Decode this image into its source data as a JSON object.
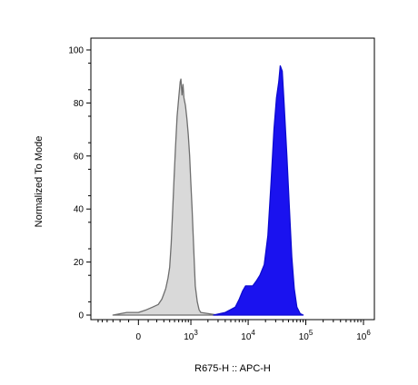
{
  "chart_data": {
    "type": "area",
    "xlabel": "R675-H :: APC-H",
    "ylabel": "Normalized To Mode",
    "x_scale": "biexponential",
    "ylim": [
      0,
      100
    ],
    "y_ticks": [
      "0",
      "20",
      "40",
      "60",
      "80",
      "100"
    ],
    "x_ticks": [
      {
        "value": 0,
        "base": "0",
        "exp": ""
      },
      {
        "value": 1000,
        "base": "10",
        "exp": "3"
      },
      {
        "value": 10000,
        "base": "10",
        "exp": "4"
      },
      {
        "value": 100000,
        "base": "10",
        "exp": "5"
      },
      {
        "value": 1000000,
        "base": "10",
        "exp": "6"
      }
    ],
    "grid": false,
    "series": [
      {
        "color": "#d9d9d9",
        "stroke": "#6e6e6e",
        "points": [
          [
            -300,
            0
          ],
          [
            -200,
            0.5
          ],
          [
            -120,
            1
          ],
          [
            -50,
            1
          ],
          [
            0,
            1
          ],
          [
            80,
            2
          ],
          [
            150,
            3
          ],
          [
            220,
            4
          ],
          [
            270,
            6
          ],
          [
            300,
            8
          ],
          [
            330,
            10
          ],
          [
            370,
            14
          ],
          [
            400,
            18
          ],
          [
            430,
            27
          ],
          [
            460,
            40
          ],
          [
            490,
            52
          ],
          [
            520,
            63
          ],
          [
            560,
            75
          ],
          [
            600,
            82
          ],
          [
            640,
            88
          ],
          [
            660,
            89
          ],
          [
            690,
            83
          ],
          [
            720,
            87
          ],
          [
            750,
            82
          ],
          [
            800,
            79
          ],
          [
            850,
            74
          ],
          [
            900,
            68
          ],
          [
            950,
            60
          ],
          [
            1000,
            50
          ],
          [
            1050,
            40
          ],
          [
            1100,
            30
          ],
          [
            1150,
            20
          ],
          [
            1200,
            11
          ],
          [
            1300,
            5
          ],
          [
            1400,
            2
          ],
          [
            1500,
            1
          ],
          [
            3000,
            0
          ]
        ]
      },
      {
        "color": "#1a12ef",
        "stroke": "#0d0bd0",
        "points": [
          [
            2500,
            0
          ],
          [
            4000,
            1
          ],
          [
            6000,
            3
          ],
          [
            7000,
            6
          ],
          [
            8000,
            9
          ],
          [
            9000,
            11
          ],
          [
            10000,
            11
          ],
          [
            11000,
            11
          ],
          [
            12000,
            11
          ],
          [
            14000,
            13
          ],
          [
            16000,
            15
          ],
          [
            19000,
            19
          ],
          [
            22000,
            30
          ],
          [
            25000,
            50
          ],
          [
            28000,
            70
          ],
          [
            31000,
            82
          ],
          [
            34000,
            88
          ],
          [
            36000,
            94
          ],
          [
            39000,
            92
          ],
          [
            42000,
            80
          ],
          [
            47000,
            60
          ],
          [
            52000,
            40
          ],
          [
            57000,
            22
          ],
          [
            63000,
            10
          ],
          [
            70000,
            3
          ],
          [
            80000,
            0.5
          ],
          [
            90000,
            0
          ]
        ]
      }
    ]
  }
}
